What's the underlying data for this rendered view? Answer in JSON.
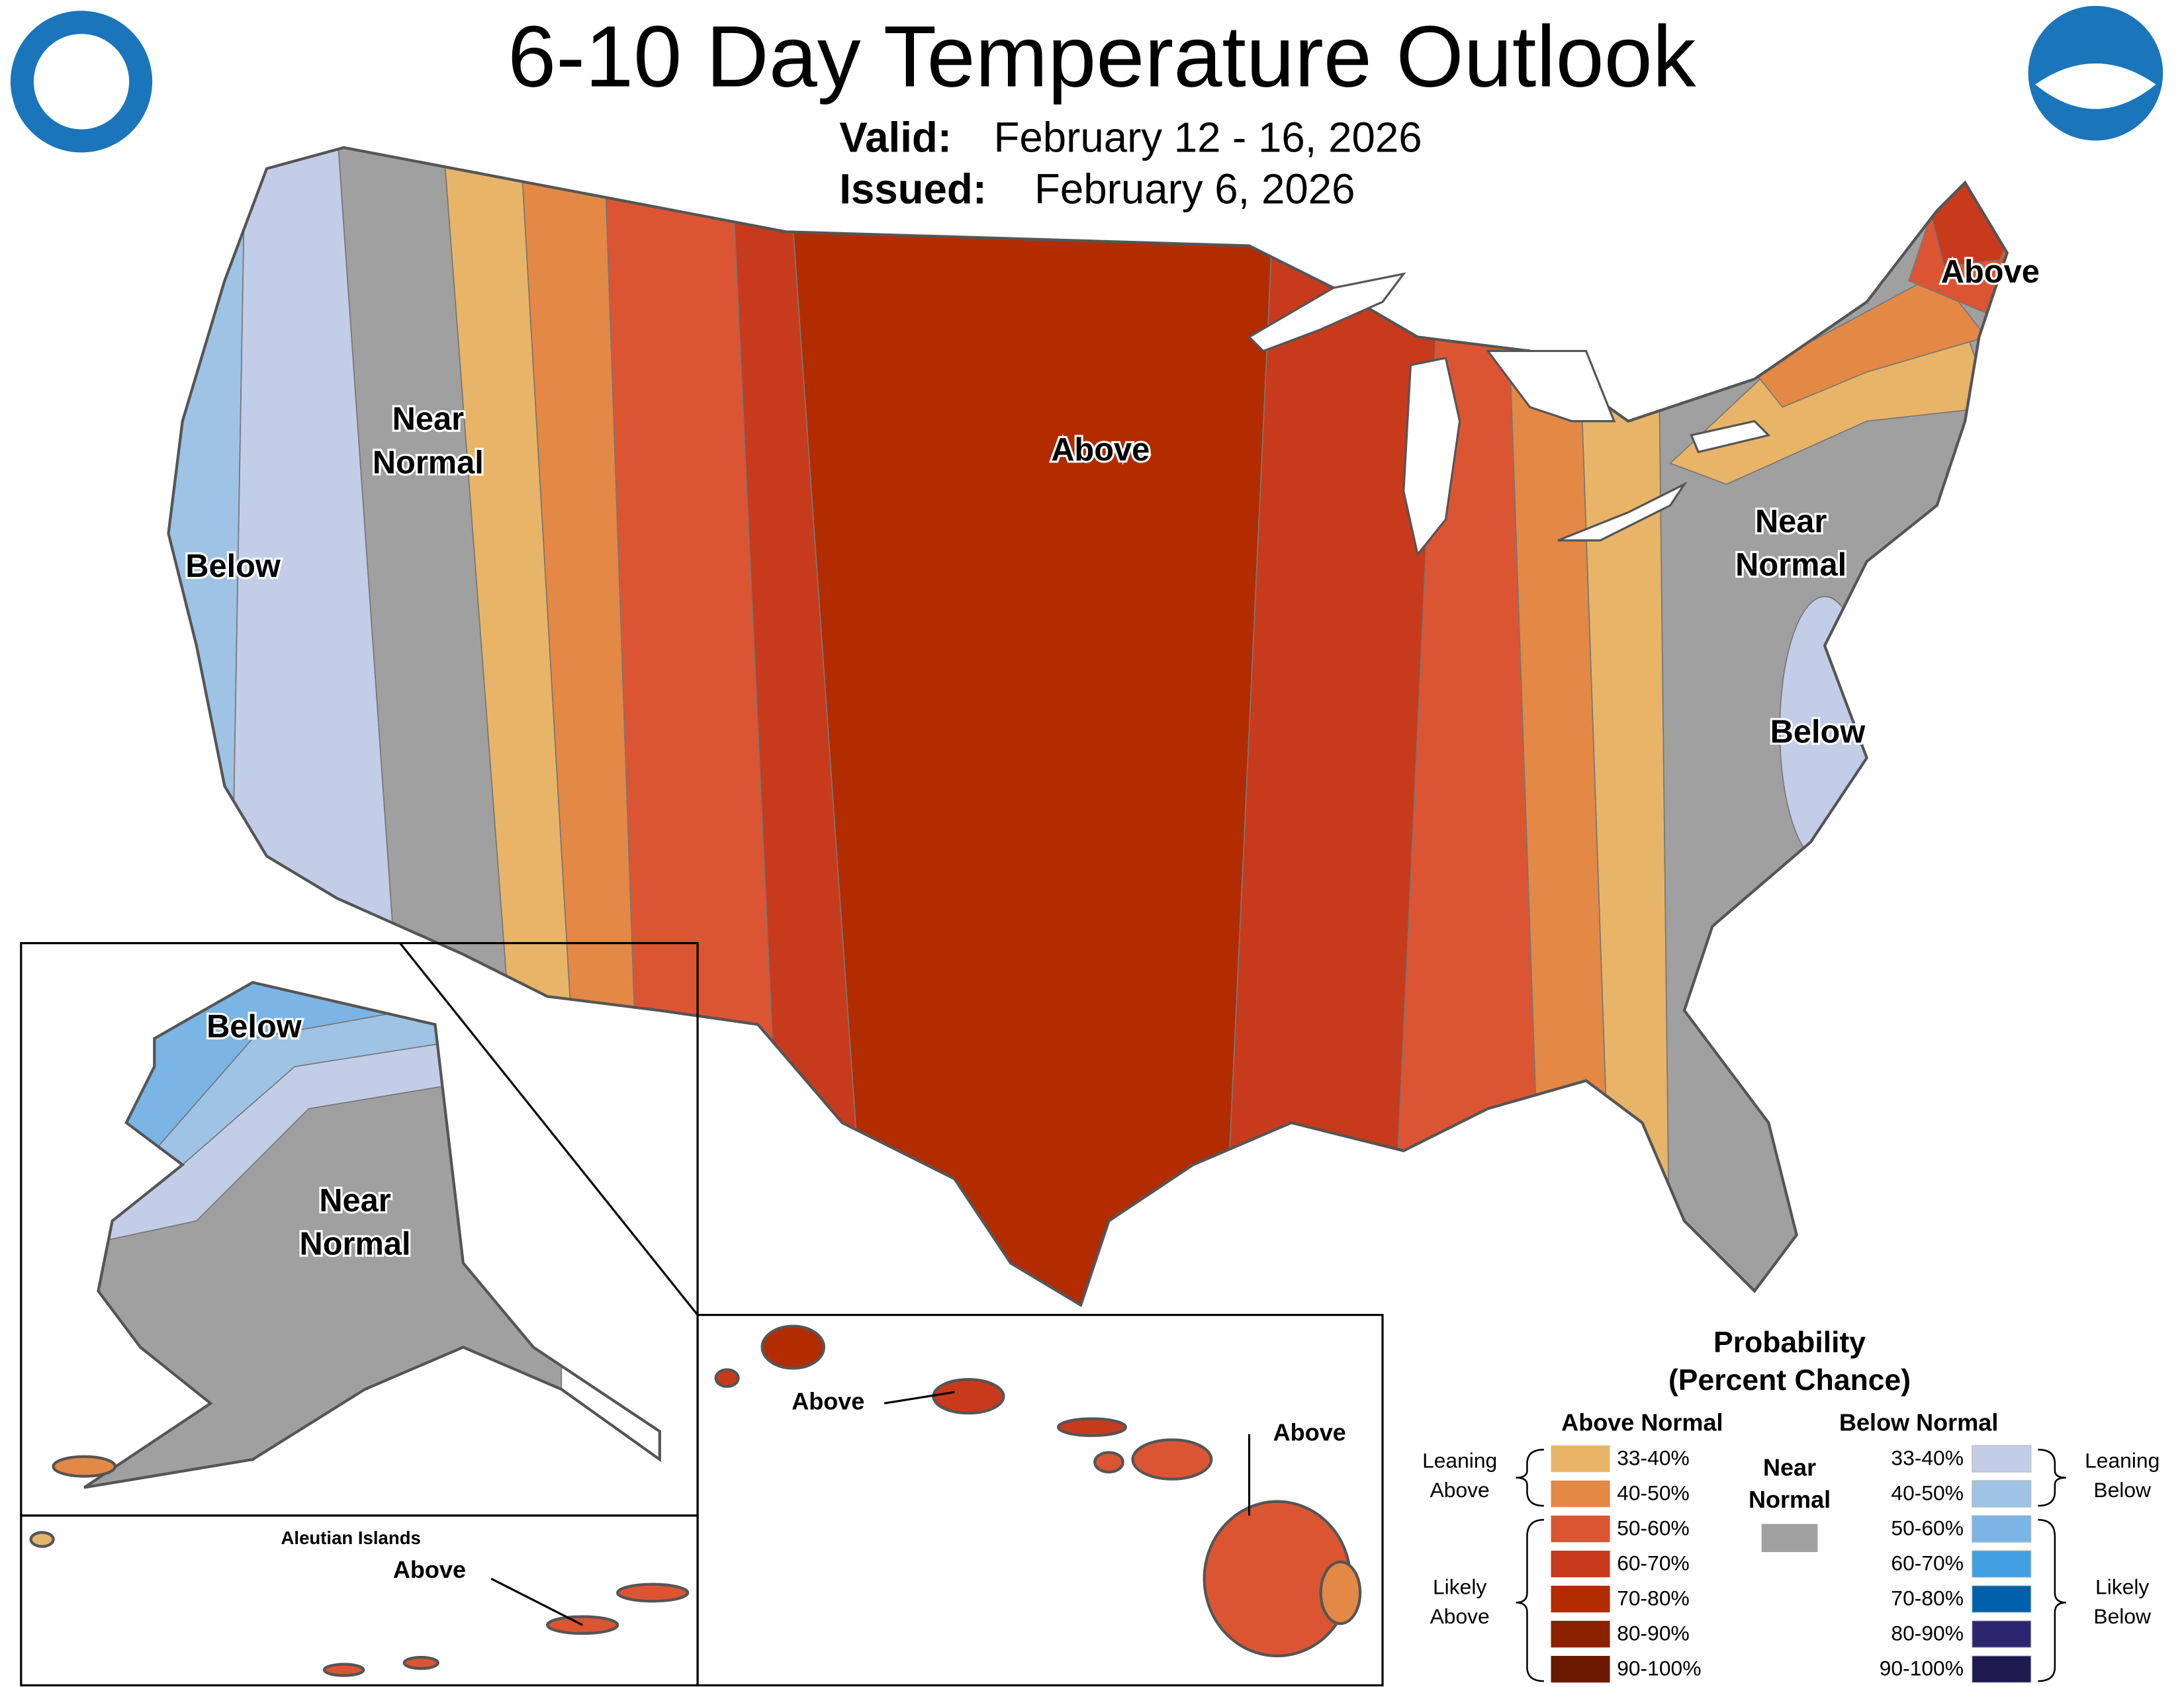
{
  "header": {
    "title": "6-10 Day Temperature Outlook",
    "valid_label": "Valid:",
    "valid": "February 12 - 16, 2026",
    "issued_label": "Issued:",
    "issued": "February 6, 2026"
  },
  "map_labels": {
    "conus": [
      [
        "Above"
      ],
      [
        "Near",
        "Normal"
      ],
      [
        "Below"
      ],
      [
        "Above"
      ],
      [
        "Near",
        "Normal"
      ],
      [
        "Below"
      ]
    ],
    "alaska": [
      [
        "Below"
      ],
      [
        "Near",
        "Normal"
      ]
    ],
    "aleutian_title": "Aleutian Islands",
    "aleutian": [
      "Above"
    ],
    "hawaii": [
      "Above",
      "Above"
    ]
  },
  "legend": {
    "title": [
      "Probability",
      "(Percent Chance)"
    ],
    "above_header": "Above Normal",
    "below_header": "Below Normal",
    "near": [
      "Near",
      "Normal"
    ],
    "near_color": "#a0a0a0",
    "leaning_above": [
      "Leaning",
      "Above"
    ],
    "likely_above": [
      "Likely",
      "Above"
    ],
    "leaning_below": [
      "Leaning",
      "Below"
    ],
    "likely_below": [
      "Likely",
      "Below"
    ],
    "above": [
      {
        "label": "33-40%",
        "color": "#e8b468"
      },
      {
        "label": "40-50%",
        "color": "#e48845"
      },
      {
        "label": "50-60%",
        "color": "#dc5533"
      },
      {
        "label": "60-70%",
        "color": "#c83a1c"
      },
      {
        "label": "70-80%",
        "color": "#b22c00"
      },
      {
        "label": "80-90%",
        "color": "#8b2100"
      },
      {
        "label": "90-100%",
        "color": "#6b1a00"
      }
    ],
    "below": [
      {
        "label": "33-40%",
        "color": "#c2cde8"
      },
      {
        "label": "40-50%",
        "color": "#9ec3e4"
      },
      {
        "label": "50-60%",
        "color": "#7ab5e6"
      },
      {
        "label": "60-70%",
        "color": "#42a0e0"
      },
      {
        "label": "70-80%",
        "color": "#0060ab"
      },
      {
        "label": "80-90%",
        "color": "#2e2570"
      },
      {
        "label": "90-100%",
        "color": "#1d1a50"
      }
    ]
  }
}
